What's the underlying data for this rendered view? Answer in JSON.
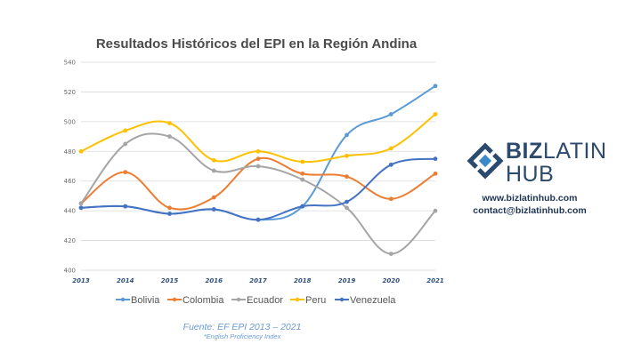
{
  "chart_data": {
    "type": "line",
    "title": "Resultados Históricos del EPI en la Región Andina",
    "x": [
      "2013",
      "2014",
      "2015",
      "2016",
      "2017",
      "2018",
      "2019",
      "2020",
      "2021"
    ],
    "ylim": [
      400,
      540
    ],
    "yticks": [
      "400",
      "420",
      "440",
      "460",
      "480",
      "500",
      "520",
      "540"
    ],
    "grid": true,
    "legend_position": "bottom",
    "series": [
      {
        "name": "Bolivia",
        "color": "#5b9bd5",
        "values": [
          442,
          443,
          438,
          441,
          434,
          443,
          491,
          505,
          524
        ]
      },
      {
        "name": "Colombia",
        "color": "#ed7d31",
        "values": [
          445,
          466,
          442,
          449,
          475,
          465,
          463,
          448,
          465
        ]
      },
      {
        "name": "Ecuador",
        "color": "#a5a5a5",
        "values": [
          445,
          485,
          490,
          467,
          470,
          461,
          442,
          411,
          440
        ]
      },
      {
        "name": "Peru",
        "color": "#ffc000",
        "values": [
          480,
          494,
          499,
          474,
          480,
          473,
          477,
          482,
          505
        ]
      },
      {
        "name": "Venezuela",
        "color": "#4472c4",
        "values": [
          442,
          443,
          438,
          441,
          434,
          443,
          446,
          471,
          475
        ]
      }
    ]
  },
  "source": {
    "line1": "Fuente: EF EPI 2013 – 2021",
    "line2": "*English Proficiency Index"
  },
  "brand": {
    "word1": "BIZ",
    "word2": "LATIN",
    "word3": "HUB",
    "accent": "#2c4a6e",
    "icon": "biz-latin-hub-logo-icon",
    "website": "www.bizlatinhub.com",
    "email": "contact@bizlatinhub.com"
  }
}
